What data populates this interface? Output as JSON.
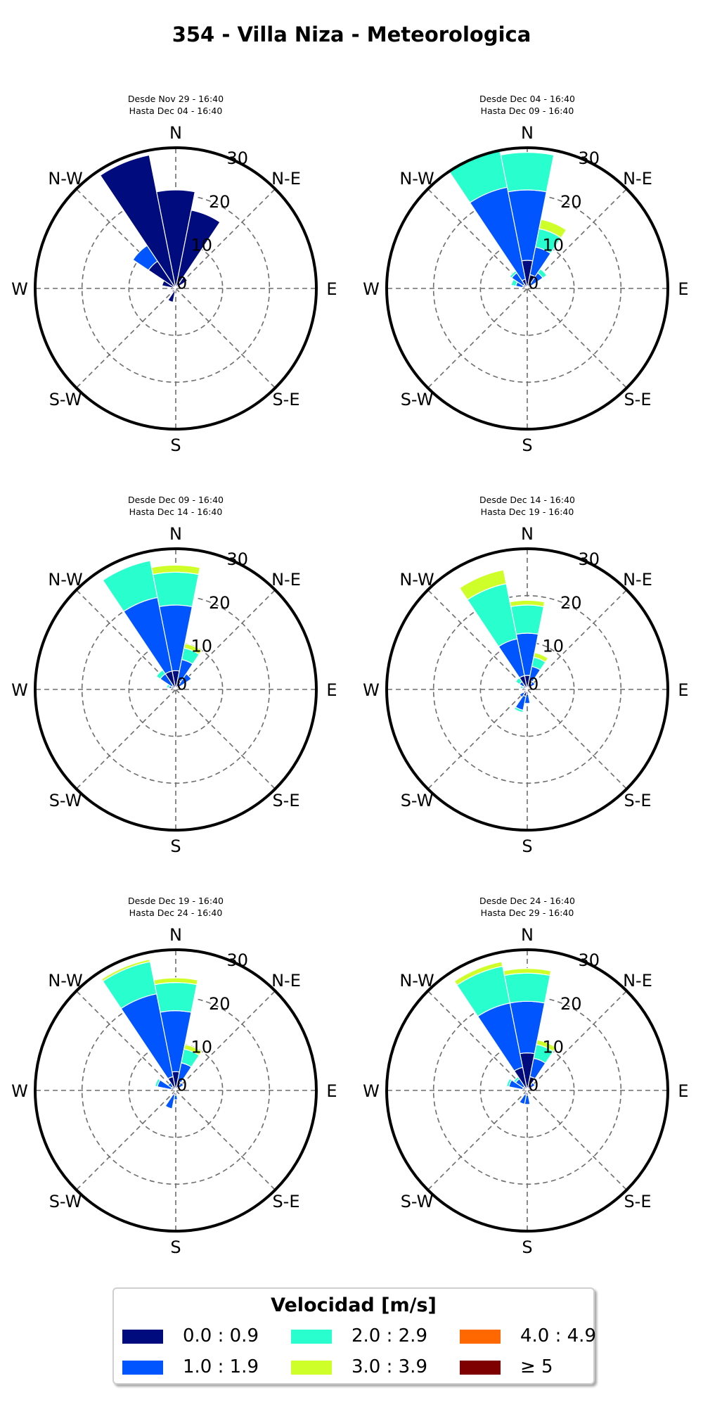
{
  "title": "354 - Villa Niza - Meteorologica",
  "legend": {
    "title": "Velocidad [m/s]",
    "items": [
      {
        "label": "0.0 : 0.9",
        "color": "#000c7d"
      },
      {
        "label": "1.0 : 1.9",
        "color": "#0055ff"
      },
      {
        "label": "2.0 : 2.9",
        "color": "#29ffce"
      },
      {
        "label": "3.0 : 3.9",
        "color": "#ceff29"
      },
      {
        "label": "4.0 : 4.9",
        "color": "#ff6800"
      },
      {
        "label": "≥  5",
        "color": "#7f0000"
      }
    ]
  },
  "chart_data": [
    {
      "type": "windrose",
      "title": "Desde Nov 29 - 16:40\nHasta Dec 04 - 16:40",
      "direction_labels": [
        "N",
        "N-E",
        "E",
        "S-E",
        "S",
        "S-W",
        "W",
        "N-W"
      ],
      "radial_ticks": [
        0,
        10,
        20,
        30
      ],
      "rmax": 30,
      "sector_width_deg": 22.5,
      "sectors": [
        {
          "dir": 0,
          "stack": [
            21
          ]
        },
        {
          "dir": 22.5,
          "stack": [
            17
          ]
        },
        {
          "dir": 45,
          "stack": [
            3
          ]
        },
        {
          "dir": 202.5,
          "stack": [
            3
          ]
        },
        {
          "dir": 225,
          "stack": [
            1
          ]
        },
        {
          "dir": 292.5,
          "stack": [
            3
          ]
        },
        {
          "dir": 315,
          "stack": [
            7,
            4
          ]
        },
        {
          "dir": 337.5,
          "stack": [
            29
          ]
        }
      ]
    },
    {
      "type": "windrose",
      "title": "Desde Dec 04 - 16:40\nHasta Dec 09 - 16:40",
      "direction_labels": [
        "N",
        "N-E",
        "E",
        "S-E",
        "S",
        "S-W",
        "W",
        "N-W"
      ],
      "radial_ticks": [
        0,
        10,
        20,
        30
      ],
      "rmax": 30,
      "sector_width_deg": 22.5,
      "sectors": [
        {
          "dir": 0,
          "stack": [
            6,
            15,
            8
          ]
        },
        {
          "dir": 22.5,
          "stack": [
            3,
            6,
            4,
            2
          ]
        },
        {
          "dir": 45,
          "stack": [
            1,
            3,
            1
          ]
        },
        {
          "dir": 292.5,
          "stack": [
            1,
            1.5,
            1
          ]
        },
        {
          "dir": 315,
          "stack": [
            1,
            3,
            0.5
          ]
        },
        {
          "dir": 337.5,
          "stack": [
            2,
            20,
            8
          ]
        }
      ]
    },
    {
      "type": "windrose",
      "title": "Desde Dec 09 - 16:40\nHasta Dec 14 - 16:40",
      "direction_labels": [
        "N",
        "N-E",
        "E",
        "S-E",
        "S",
        "S-W",
        "W",
        "N-W"
      ],
      "radial_ticks": [
        0,
        10,
        20,
        30
      ],
      "rmax": 30,
      "sector_width_deg": 22.5,
      "sectors": [
        {
          "dir": 0,
          "stack": [
            4,
            14,
            7,
            1.5
          ]
        },
        {
          "dir": 22.5,
          "stack": [
            2,
            4.5,
            2.5,
            1
          ]
        },
        {
          "dir": 45,
          "stack": [
            1,
            3
          ]
        },
        {
          "dir": 292.5,
          "stack": [
            1,
            0.5,
            0.5
          ]
        },
        {
          "dir": 315,
          "stack": [
            1,
            3,
            1
          ]
        },
        {
          "dir": 337.5,
          "stack": [
            4,
            16,
            8
          ]
        }
      ]
    },
    {
      "type": "windrose",
      "title": "Desde Dec 14 - 16:40\nHasta Dec 19 - 16:40",
      "direction_labels": [
        "N",
        "N-E",
        "E",
        "S-E",
        "S",
        "S-W",
        "W",
        "N-W"
      ],
      "radial_ticks": [
        0,
        10,
        20,
        30
      ],
      "rmax": 30,
      "sector_width_deg": 22.5,
      "sectors": [
        {
          "dir": 0,
          "stack": [
            3,
            9,
            6,
            1
          ]
        },
        {
          "dir": 22.5,
          "stack": [
            2,
            3,
            2,
            1
          ]
        },
        {
          "dir": 45,
          "stack": [
            1,
            1
          ]
        },
        {
          "dir": 180,
          "stack": [
            1,
            2
          ]
        },
        {
          "dir": 202.5,
          "stack": [
            1.5,
            3,
            0.5
          ]
        },
        {
          "dir": 225,
          "stack": [
            1,
            1
          ]
        },
        {
          "dir": 292.5,
          "stack": [
            0.5,
            0.5,
            0.5
          ]
        },
        {
          "dir": 315,
          "stack": [
            1,
            1,
            1
          ]
        },
        {
          "dir": 337.5,
          "stack": [
            3,
            8,
            12,
            3
          ]
        }
      ]
    },
    {
      "type": "windrose",
      "title": "Desde Dec 19 - 16:40\nHasta Dec 24 - 16:40",
      "direction_labels": [
        "N",
        "N-E",
        "E",
        "S-E",
        "S",
        "S-W",
        "W",
        "N-W"
      ],
      "radial_ticks": [
        0,
        10,
        20,
        30
      ],
      "rmax": 30,
      "sector_width_deg": 22.5,
      "sectors": [
        {
          "dir": 0,
          "stack": [
            4,
            13,
            6,
            1
          ]
        },
        {
          "dir": 22.5,
          "stack": [
            2,
            4,
            3,
            1
          ]
        },
        {
          "dir": 45,
          "stack": [
            1,
            1
          ]
        },
        {
          "dir": 180,
          "stack": [
            1,
            1
          ]
        },
        {
          "dir": 202.5,
          "stack": [
            1,
            3
          ]
        },
        {
          "dir": 292.5,
          "stack": [
            1,
            3,
            0.5
          ]
        },
        {
          "dir": 315,
          "stack": [
            1,
            1
          ]
        },
        {
          "dir": 337.5,
          "stack": [
            3,
            18,
            7,
            0.5
          ]
        }
      ]
    },
    {
      "type": "windrose",
      "title": "Desde Dec 24 - 16:40\nHasta Dec 29 - 16:40",
      "direction_labels": [
        "N",
        "N-E",
        "E",
        "S-E",
        "S",
        "S-W",
        "W",
        "N-W"
      ],
      "radial_ticks": [
        0,
        10,
        20,
        30
      ],
      "rmax": 30,
      "sector_width_deg": 22.5,
      "sectors": [
        {
          "dir": 0,
          "stack": [
            8,
            11,
            6,
            1
          ]
        },
        {
          "dir": 22.5,
          "stack": [
            3,
            4,
            3,
            1
          ]
        },
        {
          "dir": 45,
          "stack": [
            1,
            1
          ]
        },
        {
          "dir": 180,
          "stack": [
            1,
            2
          ]
        },
        {
          "dir": 202.5,
          "stack": [
            1,
            2
          ]
        },
        {
          "dir": 292.5,
          "stack": [
            1,
            3,
            0.5
          ]
        },
        {
          "dir": 315,
          "stack": [
            1,
            2,
            0.5
          ]
        },
        {
          "dir": 337.5,
          "stack": [
            5,
            14,
            8,
            1
          ]
        }
      ]
    }
  ]
}
